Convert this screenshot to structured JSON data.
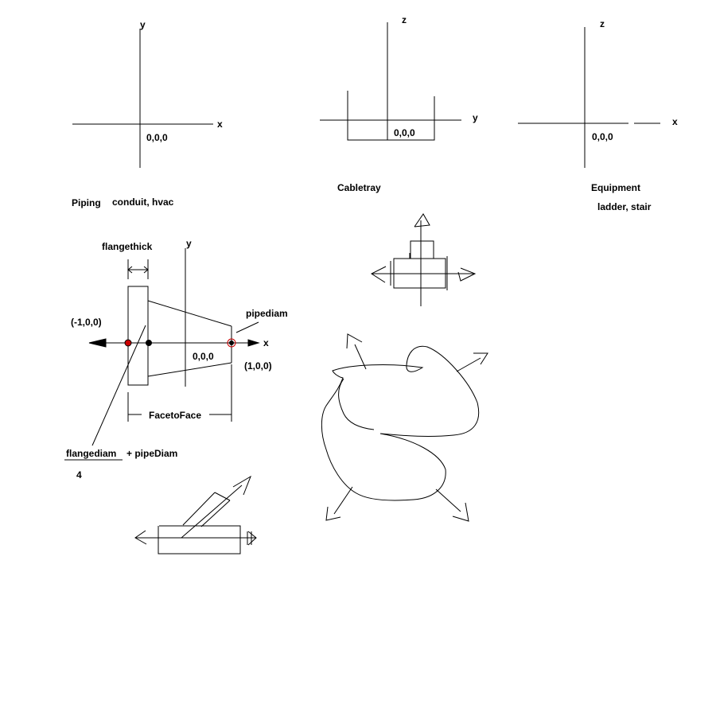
{
  "colors": {
    "ink": "#000000",
    "port_marker": "#cc0000",
    "background": "#ffffff"
  },
  "panels": {
    "piping": {
      "axis_y": "y",
      "axis_x": "x",
      "origin": "0,0,0",
      "title": "Piping",
      "subtitle": "conduit, hvac"
    },
    "cabletray": {
      "axis_z": "z",
      "axis_y": "y",
      "origin": "0,0,0",
      "title": "Cabletray"
    },
    "equipment": {
      "axis_z": "z",
      "axis_x": "x",
      "origin": "0,0,0",
      "title": "Equipment",
      "subtitle": "ladder, stair"
    }
  },
  "flange_diagram": {
    "flangethick": "flangethick",
    "axis_y": "y",
    "axis_x": "x",
    "pipediam": "pipediam",
    "port_neg": "(-1,0,0)",
    "port_pos": "(1,0,0)",
    "origin": "0,0,0",
    "face_to_face": "FacetoFace",
    "formula_numerator": "flangediam",
    "formula_plus": "+ pipeDiam",
    "formula_denominator": "4"
  }
}
